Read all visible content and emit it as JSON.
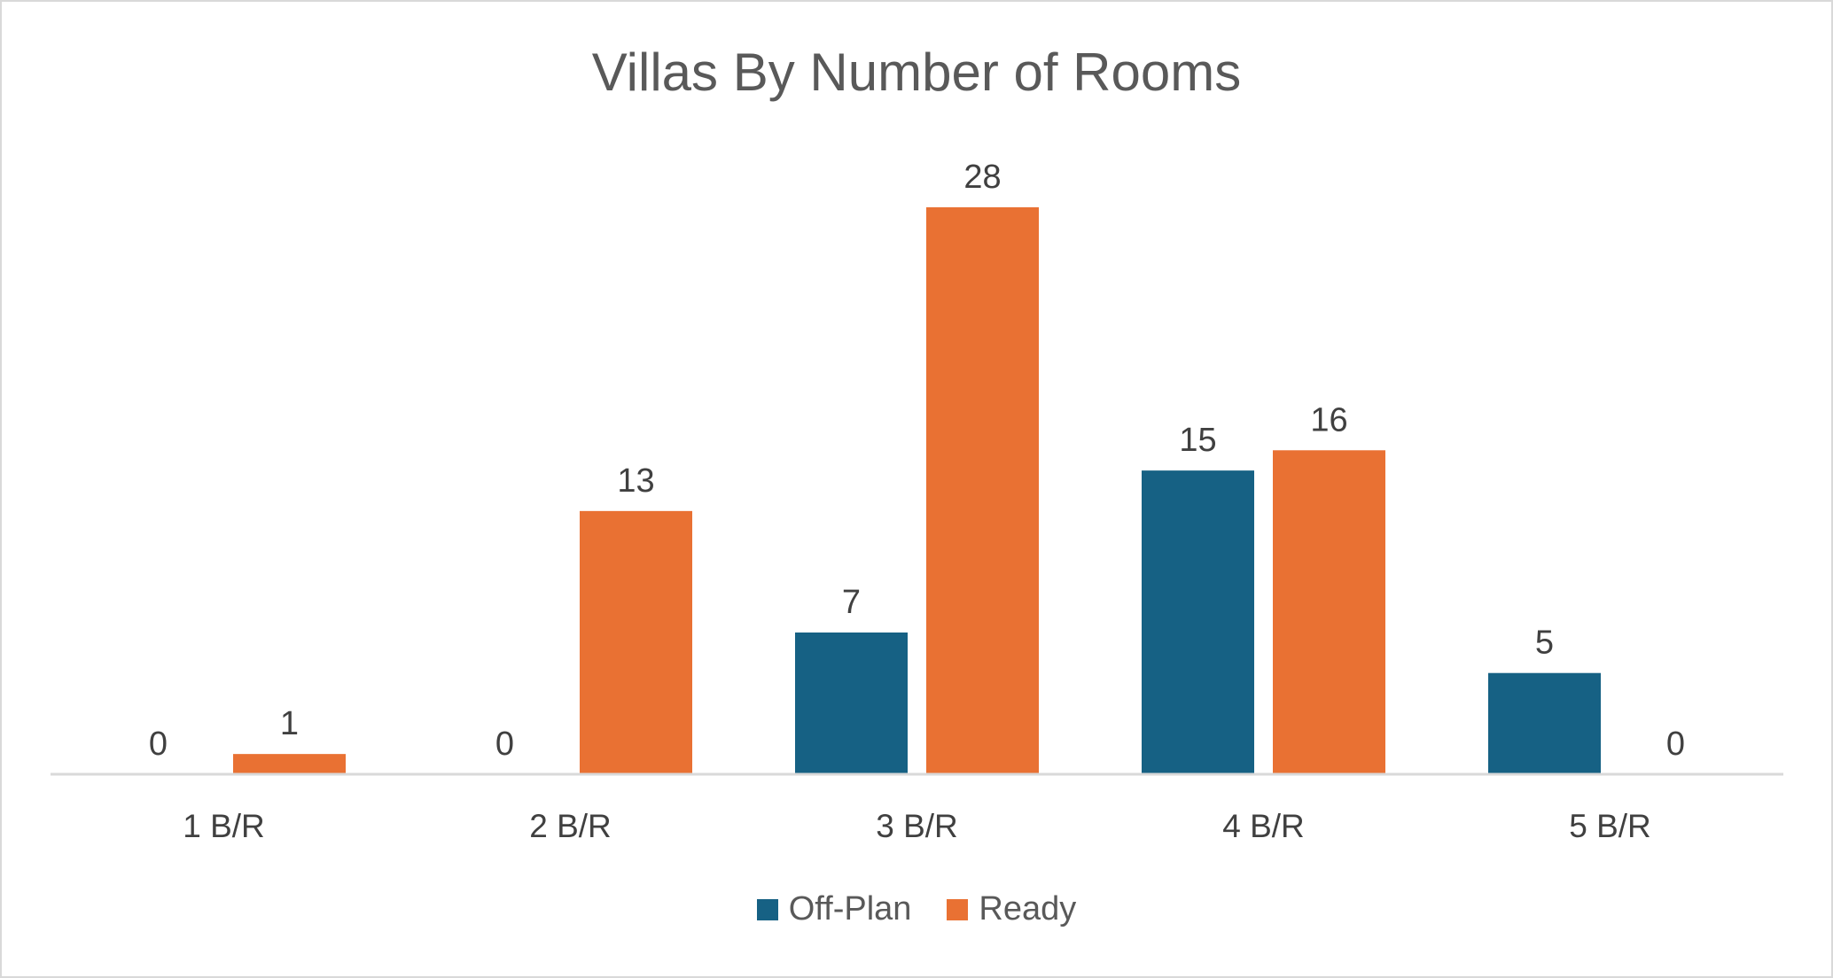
{
  "chart_data": {
    "type": "bar",
    "title": "Villas By Number of Rooms",
    "categories": [
      "1 B/R",
      "2 B/R",
      "3 B/R",
      "4 B/R",
      "5 B/R"
    ],
    "series": [
      {
        "name": "Off-Plan",
        "values": [
          0,
          0,
          7,
          15,
          5
        ],
        "color": "#166184"
      },
      {
        "name": "Ready",
        "values": [
          1,
          13,
          28,
          16,
          0
        ],
        "color": "#E97133"
      }
    ],
    "ylim": [
      0,
      28
    ],
    "grid": false,
    "legend_position": "bottom",
    "data_labels": true
  }
}
